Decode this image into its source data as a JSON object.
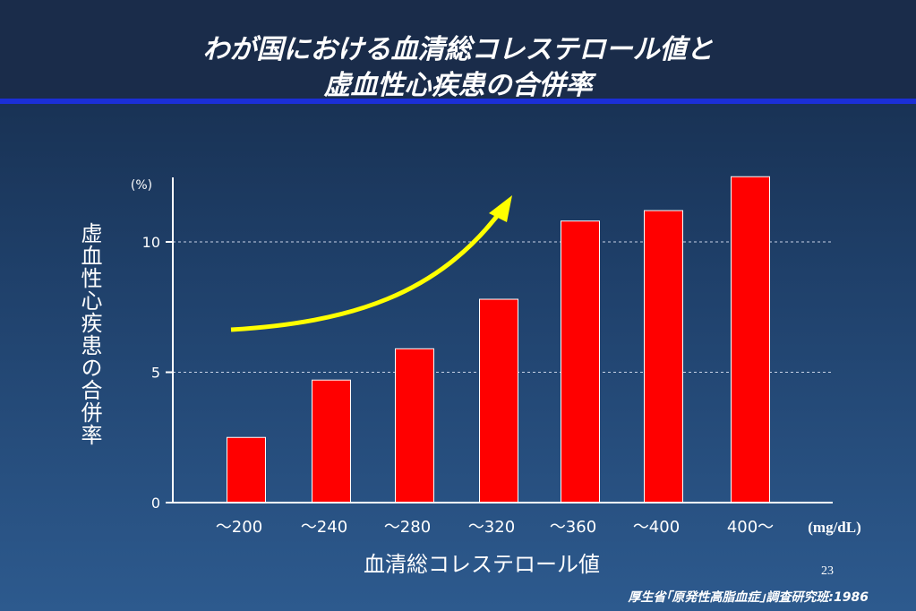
{
  "title": {
    "line1": "わが国における血清総コレステロール値と",
    "line2": "虚血性心疾患の合併率"
  },
  "page_number": "23",
  "source": "厚生省｢原発性高脂血症｣調査研究班:1986",
  "colors": {
    "bar": "#ff0000",
    "arrow": "#ffff00",
    "title_rule": "#1b2fd6"
  },
  "chart_data": {
    "type": "bar",
    "title": "わが国における血清総コレステロール値と虚血性心疾患の合併率",
    "xlabel": "血清総コレステロール値",
    "ylabel": "虚血性心疾患の合併率",
    "y_unit": "(%)",
    "x_unit": "(mg/dL)",
    "categories": [
      "～200",
      "～240",
      "～280",
      "～320",
      "～360",
      "～400",
      "400～"
    ],
    "values": [
      2.5,
      4.7,
      5.9,
      7.8,
      10.8,
      11.2,
      12.5
    ],
    "ylim": [
      0,
      12.8
    ],
    "yticks": [
      0,
      5,
      10
    ],
    "grid": "dashed at 5 and 10",
    "annotation": "yellow curved arrow indicating an increasing trend"
  }
}
